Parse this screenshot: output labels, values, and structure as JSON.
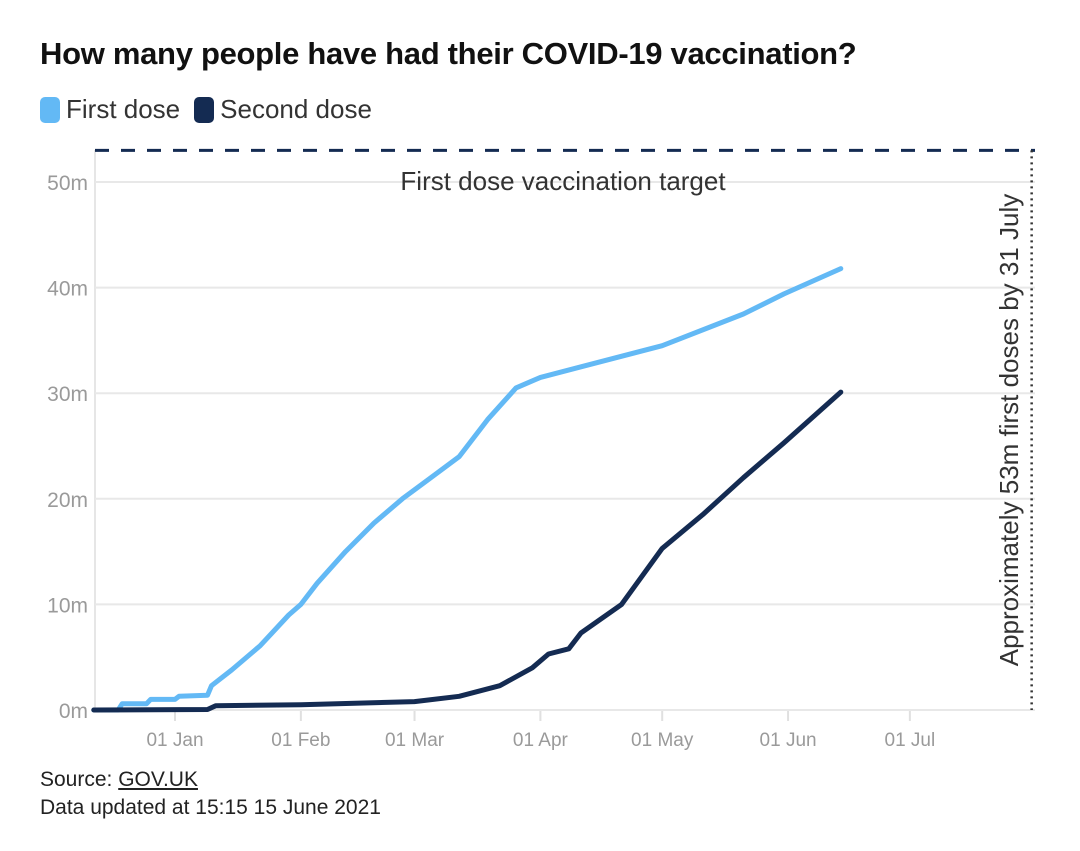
{
  "chart_data": {
    "type": "line",
    "title": "How many people have had their COVID-19 vaccination?",
    "xlabel": "",
    "ylabel": "",
    "x_units": "days since 01 Jan 2021",
    "xlim": [
      -20,
      225
    ],
    "ylim": [
      0,
      50
    ],
    "yticks": [
      {
        "v": 0,
        "label": "0m"
      },
      {
        "v": 10,
        "label": "10m"
      },
      {
        "v": 20,
        "label": "20m"
      },
      {
        "v": 30,
        "label": "30m"
      },
      {
        "v": 40,
        "label": "40m"
      },
      {
        "v": 50,
        "label": "50m"
      }
    ],
    "xticks": [
      {
        "v": 0,
        "label": "01 Jan"
      },
      {
        "v": 31,
        "label": "01 Feb"
      },
      {
        "v": 59,
        "label": "01 Mar"
      },
      {
        "v": 90,
        "label": "01 Apr"
      },
      {
        "v": 120,
        "label": "01 May"
      },
      {
        "v": 151,
        "label": "01 Jun"
      },
      {
        "v": 181,
        "label": "01 Jul"
      }
    ],
    "grid": true,
    "legend_position": "top-left",
    "series": [
      {
        "name": "First dose",
        "color": "#63b9f5",
        "x": [
          -20,
          -14,
          -13,
          -7,
          -6,
          0,
          1,
          8,
          9,
          14,
          21,
          28,
          31,
          35,
          42,
          49,
          56,
          63,
          70,
          77,
          84,
          90,
          100,
          120,
          140,
          150,
          164
        ],
        "y": [
          0,
          0,
          0.6,
          0.6,
          1.0,
          1.0,
          1.3,
          1.4,
          2.3,
          3.8,
          6.1,
          9.0,
          10.0,
          12.0,
          15.0,
          17.7,
          20.0,
          22.0,
          24.0,
          27.5,
          30.5,
          31.5,
          32.5,
          34.5,
          37.5,
          39.4,
          41.8
        ]
      },
      {
        "name": "Second dose",
        "color": "#142b52",
        "x": [
          -20,
          8,
          10,
          31,
          59,
          70,
          80,
          88,
          92,
          97,
          100,
          110,
          120,
          130,
          140,
          150,
          164
        ],
        "y": [
          0,
          0.05,
          0.4,
          0.5,
          0.8,
          1.3,
          2.3,
          4.0,
          5.3,
          5.8,
          7.3,
          10.0,
          15.3,
          18.5,
          22.0,
          25.3,
          30.1
        ]
      }
    ],
    "annotations": [
      {
        "type": "hline",
        "y": 53,
        "label": "First dose vaccination target"
      },
      {
        "type": "vline",
        "x": 211,
        "label": "Approximately 53m first doses by 31 July"
      }
    ]
  },
  "footer": {
    "source_prefix": "Source: ",
    "source_link": "GOV.UK",
    "updated": "Data updated at 15:15 15 June 2021"
  }
}
